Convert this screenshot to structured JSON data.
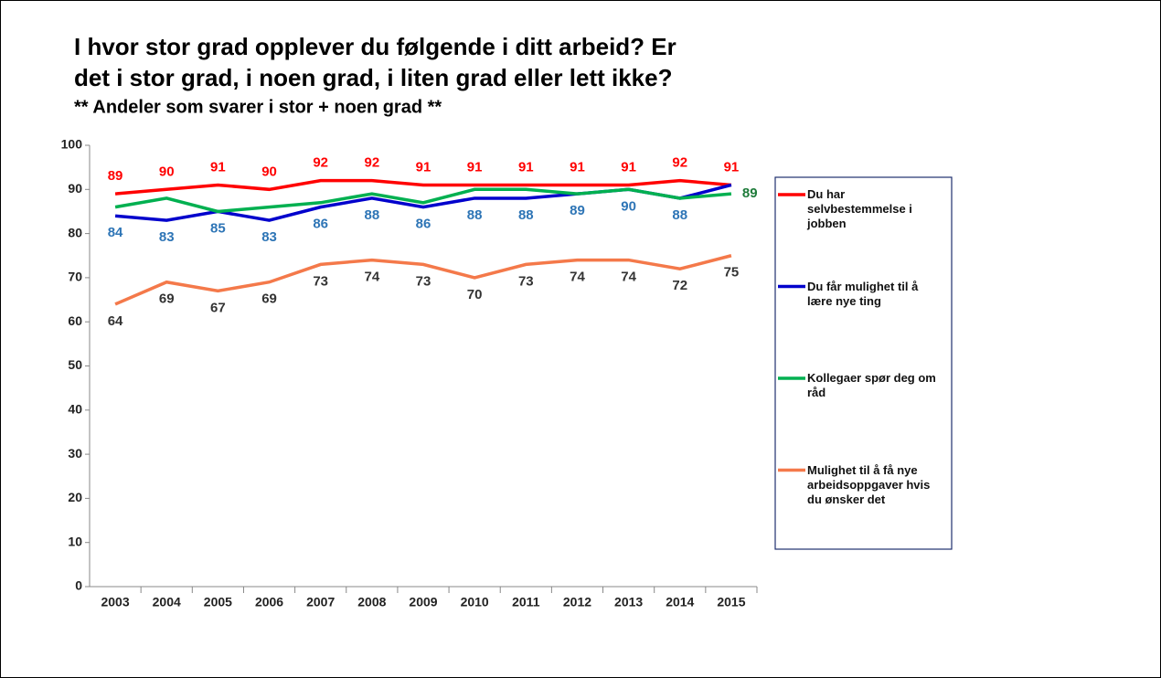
{
  "chart_data": {
    "type": "line",
    "title_lines": [
      "I hvor stor grad opplever du følgende i ditt arbeid? Er",
      "det i stor grad, i noen grad, i liten grad eller lett ikke?"
    ],
    "subtitle": "** Andeler som svarer i stor + noen grad **",
    "categories": [
      "2003",
      "2004",
      "2005",
      "2006",
      "2007",
      "2008",
      "2009",
      "2010",
      "2011",
      "2012",
      "2013",
      "2014",
      "2015"
    ],
    "ylim": [
      0,
      100
    ],
    "yticks": [
      0,
      10,
      20,
      30,
      40,
      50,
      60,
      70,
      80,
      90,
      100
    ],
    "grid": false,
    "legend": "right",
    "series": [
      {
        "name": "Du har selvbestemmelse i jobben",
        "color": "#ff0000",
        "label_color": "#ff0000",
        "label_position": "above",
        "values": [
          89,
          90,
          91,
          90,
          92,
          92,
          91,
          91,
          91,
          91,
          91,
          92,
          91
        ],
        "value_labels": [
          89,
          90,
          91,
          90,
          92,
          92,
          91,
          91,
          91,
          91,
          91,
          92,
          91
        ]
      },
      {
        "name": "Du får mulighet til å lære nye ting",
        "color": "#0000cc",
        "label_color": "#2e75b6",
        "label_position": "below",
        "values": [
          84,
          83,
          85,
          83,
          86,
          88,
          86,
          88,
          88,
          89,
          90,
          88,
          91
        ],
        "value_labels": [
          84,
          83,
          85,
          83,
          86,
          88,
          86,
          88,
          88,
          89,
          90,
          88,
          null
        ]
      },
      {
        "name": "Kollegaer spør deg om råd",
        "color": "#00b050",
        "label_color": "#1e7b3a",
        "label_position": "right",
        "values": [
          86,
          88,
          85,
          86,
          87,
          89,
          87,
          90,
          90,
          89,
          90,
          88,
          89
        ],
        "value_labels": [
          null,
          null,
          null,
          null,
          null,
          null,
          null,
          null,
          null,
          null,
          null,
          null,
          89
        ]
      },
      {
        "name": "Mulighet til å få nye arbeidsoppgaver hvis du ønsker det",
        "color": "#f4794a",
        "label_color": "#333333",
        "label_position": "below",
        "values": [
          64,
          69,
          67,
          69,
          73,
          74,
          73,
          70,
          73,
          74,
          74,
          72,
          75
        ],
        "value_labels": [
          64,
          69,
          67,
          69,
          73,
          74,
          73,
          70,
          73,
          74,
          74,
          72,
          75
        ]
      }
    ]
  }
}
